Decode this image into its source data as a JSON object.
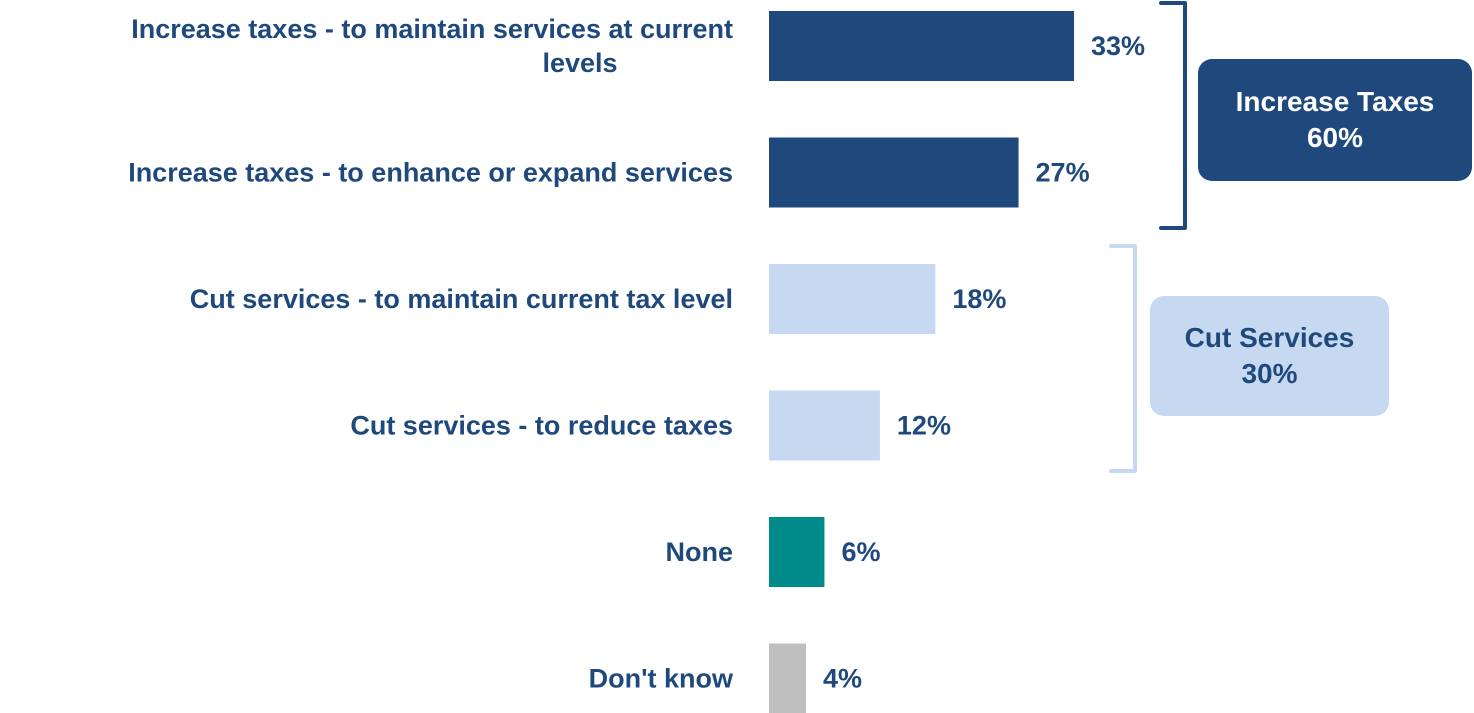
{
  "chart_data": {
    "type": "bar",
    "orientation": "horizontal",
    "categories": [
      "Increase taxes - to maintain services at current levels",
      "Increase taxes - to enhance or expand services",
      "Cut services - to maintain current tax level",
      "Cut services - to reduce taxes",
      "None",
      "Don't know"
    ],
    "values": [
      33,
      27,
      18,
      12,
      6,
      4
    ],
    "value_labels": [
      "33%",
      "27%",
      "18%",
      "12%",
      "6%",
      "4%"
    ],
    "bar_colors": [
      "#1f497d",
      "#1f497d",
      "#c6d9f1",
      "#c6d9f1",
      "#008b8b",
      "#bfbfbf"
    ],
    "title": "",
    "xlabel": "",
    "ylabel": "",
    "xlim": [
      0,
      33
    ],
    "grid": false,
    "groups": [
      {
        "label_line1": "Increase Taxes",
        "label_line2": "60%",
        "categories_index": [
          0,
          1
        ],
        "box_color": "#1f497d",
        "text_color": "#ffffff",
        "bracket_color": "#1f497d"
      },
      {
        "label_line1": "Cut Services",
        "label_line2": "30%",
        "categories_index": [
          2,
          3
        ],
        "box_color": "#c6d9f1",
        "text_color": "#1f497d",
        "bracket_color": "#c6d9f1"
      }
    ]
  },
  "colors": {
    "label_text": "#1f497d"
  }
}
